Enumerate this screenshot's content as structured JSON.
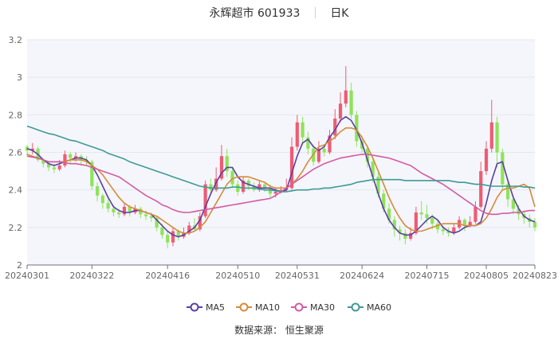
{
  "header": {
    "name": "永辉超市",
    "code": "601933",
    "period": "日K"
  },
  "footer": {
    "source": "数据来源：  恒生聚源"
  },
  "colors": {
    "up": "#f05b72",
    "down": "#8ee35a",
    "ma5": "#5b3fa3",
    "ma10": "#d9893a",
    "ma30": "#d45aa3",
    "ma60": "#3f9a96",
    "plot_bg": "#f4f6fb"
  },
  "chart_data": {
    "type": "candlestick",
    "title": "永辉超市 601933  日K",
    "ylim": [
      2.0,
      3.2
    ],
    "yticks": [
      2,
      2.2,
      2.4,
      2.6,
      2.8,
      3,
      3.2
    ],
    "xticks": [
      "20240301",
      "20240322",
      "20240416",
      "20240510",
      "20240531",
      "20240624",
      "20240715",
      "20240805",
      "20240823"
    ],
    "grid": true,
    "legend_position": "bottom",
    "series": [
      {
        "name": "MA5",
        "values": [
          2.62,
          2.61,
          2.59,
          2.56,
          2.54,
          2.53,
          2.54,
          2.55,
          2.56,
          2.57,
          2.57,
          2.56,
          2.53,
          2.48,
          2.42,
          2.36,
          2.31,
          2.29,
          2.28,
          2.28,
          2.29,
          2.29,
          2.28,
          2.27,
          2.24,
          2.21,
          2.18,
          2.16,
          2.15,
          2.16,
          2.18,
          2.2,
          2.24,
          2.31,
          2.38,
          2.44,
          2.49,
          2.52,
          2.52,
          2.47,
          2.44,
          2.43,
          2.42,
          2.41,
          2.41,
          2.41,
          2.4,
          2.39,
          2.4,
          2.49,
          2.58,
          2.65,
          2.67,
          2.63,
          2.61,
          2.63,
          2.68,
          2.72,
          2.77,
          2.79,
          2.77,
          2.72,
          2.65,
          2.56,
          2.47,
          2.38,
          2.3,
          2.24,
          2.2,
          2.17,
          2.16,
          2.16,
          2.18,
          2.21,
          2.24,
          2.26,
          2.24,
          2.2,
          2.18,
          2.17,
          2.18,
          2.2,
          2.21,
          2.21,
          2.23,
          2.33,
          2.45,
          2.54,
          2.55,
          2.45,
          2.36,
          2.3,
          2.26,
          2.24,
          2.23
        ]
      },
      {
        "name": "MA10",
        "values": [
          2.59,
          2.58,
          2.57,
          2.56,
          2.55,
          2.55,
          2.55,
          2.55,
          2.56,
          2.56,
          2.56,
          2.55,
          2.53,
          2.51,
          2.48,
          2.44,
          2.4,
          2.36,
          2.33,
          2.31,
          2.3,
          2.29,
          2.28,
          2.27,
          2.26,
          2.24,
          2.22,
          2.2,
          2.18,
          2.17,
          2.17,
          2.18,
          2.2,
          2.23,
          2.28,
          2.33,
          2.38,
          2.43,
          2.46,
          2.47,
          2.47,
          2.47,
          2.46,
          2.45,
          2.44,
          2.42,
          2.41,
          2.41,
          2.41,
          2.43,
          2.46,
          2.5,
          2.55,
          2.59,
          2.63,
          2.64,
          2.66,
          2.68,
          2.71,
          2.73,
          2.73,
          2.72,
          2.68,
          2.63,
          2.57,
          2.5,
          2.43,
          2.36,
          2.3,
          2.25,
          2.21,
          2.19,
          2.18,
          2.18,
          2.19,
          2.2,
          2.21,
          2.22,
          2.22,
          2.22,
          2.22,
          2.21,
          2.21,
          2.21,
          2.22,
          2.25,
          2.3,
          2.36,
          2.4,
          2.41,
          2.41,
          2.42,
          2.43,
          2.41,
          2.31
        ]
      },
      {
        "name": "MA30",
        "values": [
          2.58,
          2.575,
          2.57,
          2.56,
          2.55,
          2.55,
          2.55,
          2.545,
          2.54,
          2.54,
          2.535,
          2.53,
          2.52,
          2.51,
          2.5,
          2.49,
          2.48,
          2.47,
          2.45,
          2.43,
          2.41,
          2.39,
          2.37,
          2.355,
          2.34,
          2.32,
          2.31,
          2.295,
          2.285,
          2.28,
          2.28,
          2.285,
          2.29,
          2.295,
          2.3,
          2.305,
          2.31,
          2.315,
          2.32,
          2.325,
          2.33,
          2.335,
          2.34,
          2.345,
          2.35,
          2.355,
          2.37,
          2.39,
          2.41,
          2.43,
          2.45,
          2.47,
          2.49,
          2.51,
          2.525,
          2.54,
          2.55,
          2.56,
          2.57,
          2.575,
          2.58,
          2.585,
          2.59,
          2.59,
          2.585,
          2.58,
          2.575,
          2.57,
          2.56,
          2.55,
          2.54,
          2.53,
          2.51,
          2.49,
          2.475,
          2.46,
          2.445,
          2.43,
          2.41,
          2.39,
          2.37,
          2.35,
          2.33,
          2.31,
          2.29,
          2.275,
          2.27,
          2.27,
          2.275,
          2.275,
          2.28,
          2.28,
          2.285,
          2.29,
          2.29
        ]
      },
      {
        "name": "MA60",
        "values": [
          2.74,
          2.73,
          2.72,
          2.71,
          2.7,
          2.695,
          2.685,
          2.675,
          2.665,
          2.66,
          2.65,
          2.64,
          2.63,
          2.62,
          2.61,
          2.595,
          2.585,
          2.575,
          2.565,
          2.55,
          2.54,
          2.53,
          2.52,
          2.51,
          2.5,
          2.49,
          2.48,
          2.47,
          2.46,
          2.45,
          2.44,
          2.43,
          2.42,
          2.415,
          2.41,
          2.41,
          2.41,
          2.41,
          2.415,
          2.415,
          2.41,
          2.41,
          2.41,
          2.405,
          2.4,
          2.4,
          2.395,
          2.39,
          2.39,
          2.395,
          2.4,
          2.4,
          2.4,
          2.405,
          2.405,
          2.41,
          2.41,
          2.415,
          2.42,
          2.425,
          2.43,
          2.44,
          2.445,
          2.45,
          2.455,
          2.455,
          2.455,
          2.455,
          2.455,
          2.455,
          2.45,
          2.45,
          2.45,
          2.45,
          2.45,
          2.45,
          2.45,
          2.45,
          2.45,
          2.445,
          2.44,
          2.44,
          2.435,
          2.43,
          2.43,
          2.425,
          2.42,
          2.42,
          2.42,
          2.42,
          2.42,
          2.42,
          2.415,
          2.415,
          2.41
        ]
      }
    ],
    "candles": [
      [
        2.63,
        2.61,
        2.64,
        2.58
      ],
      [
        2.61,
        2.62,
        2.65,
        2.59
      ],
      [
        2.62,
        2.56,
        2.63,
        2.55
      ],
      [
        2.56,
        2.54,
        2.57,
        2.52
      ],
      [
        2.54,
        2.52,
        2.55,
        2.5
      ],
      [
        2.52,
        2.51,
        2.54,
        2.49
      ],
      [
        2.51,
        2.53,
        2.56,
        2.5
      ],
      [
        2.53,
        2.59,
        2.61,
        2.52
      ],
      [
        2.59,
        2.57,
        2.6,
        2.54
      ],
      [
        2.57,
        2.58,
        2.6,
        2.55
      ],
      [
        2.58,
        2.56,
        2.59,
        2.53
      ],
      [
        2.56,
        2.55,
        2.58,
        2.53
      ],
      [
        2.55,
        2.42,
        2.56,
        2.4
      ],
      [
        2.42,
        2.37,
        2.44,
        2.34
      ],
      [
        2.37,
        2.33,
        2.38,
        2.3
      ],
      [
        2.33,
        2.3,
        2.35,
        2.28
      ],
      [
        2.3,
        2.28,
        2.32,
        2.26
      ],
      [
        2.28,
        2.27,
        2.3,
        2.25
      ],
      [
        2.27,
        2.31,
        2.33,
        2.26
      ],
      [
        2.31,
        2.28,
        2.32,
        2.26
      ],
      [
        2.28,
        2.3,
        2.32,
        2.27
      ],
      [
        2.3,
        2.27,
        2.31,
        2.25
      ],
      [
        2.27,
        2.26,
        2.29,
        2.24
      ],
      [
        2.26,
        2.25,
        2.28,
        2.23
      ],
      [
        2.25,
        2.2,
        2.26,
        2.18
      ],
      [
        2.2,
        2.16,
        2.22,
        2.14
      ],
      [
        2.16,
        2.12,
        2.18,
        2.09
      ],
      [
        2.12,
        2.18,
        2.2,
        2.1
      ],
      [
        2.18,
        2.15,
        2.19,
        2.13
      ],
      [
        2.15,
        2.17,
        2.2,
        2.14
      ],
      [
        2.17,
        2.21,
        2.23,
        2.16
      ],
      [
        2.21,
        2.19,
        2.25,
        2.18
      ],
      [
        2.19,
        2.26,
        2.28,
        2.18
      ],
      [
        2.26,
        2.43,
        2.45,
        2.25
      ],
      [
        2.43,
        2.4,
        2.46,
        2.38
      ],
      [
        2.4,
        2.46,
        2.52,
        2.39
      ],
      [
        2.46,
        2.58,
        2.64,
        2.45
      ],
      [
        2.58,
        2.5,
        2.62,
        2.47
      ],
      [
        2.5,
        2.43,
        2.52,
        2.41
      ],
      [
        2.43,
        2.39,
        2.45,
        2.37
      ],
      [
        2.39,
        2.45,
        2.47,
        2.38
      ],
      [
        2.45,
        2.42,
        2.46,
        2.4
      ],
      [
        2.42,
        2.4,
        2.44,
        2.39
      ],
      [
        2.4,
        2.43,
        2.45,
        2.39
      ],
      [
        2.43,
        2.41,
        2.44,
        2.39
      ],
      [
        2.41,
        2.38,
        2.43,
        2.36
      ],
      [
        2.38,
        2.39,
        2.41,
        2.36
      ],
      [
        2.39,
        2.4,
        2.42,
        2.38
      ],
      [
        2.4,
        2.41,
        2.46,
        2.39
      ],
      [
        2.41,
        2.63,
        2.68,
        2.4
      ],
      [
        2.63,
        2.76,
        2.8,
        2.61
      ],
      [
        2.76,
        2.68,
        2.79,
        2.64
      ],
      [
        2.68,
        2.62,
        2.71,
        2.59
      ],
      [
        2.62,
        2.55,
        2.64,
        2.53
      ],
      [
        2.55,
        2.62,
        2.66,
        2.54
      ],
      [
        2.62,
        2.6,
        2.64,
        2.58
      ],
      [
        2.6,
        2.69,
        2.72,
        2.59
      ],
      [
        2.69,
        2.78,
        2.83,
        2.67
      ],
      [
        2.78,
        2.86,
        2.92,
        2.76
      ],
      [
        2.86,
        2.93,
        3.06,
        2.84
      ],
      [
        2.93,
        2.8,
        2.97,
        2.78
      ],
      [
        2.8,
        2.66,
        2.82,
        2.63
      ],
      [
        2.66,
        2.62,
        2.69,
        2.6
      ],
      [
        2.62,
        2.55,
        2.64,
        2.52
      ],
      [
        2.55,
        2.47,
        2.57,
        2.44
      ],
      [
        2.47,
        2.38,
        2.49,
        2.36
      ],
      [
        2.38,
        2.3,
        2.4,
        2.28
      ],
      [
        2.3,
        2.24,
        2.33,
        2.22
      ],
      [
        2.24,
        2.19,
        2.26,
        2.15
      ],
      [
        2.19,
        2.17,
        2.21,
        2.13
      ],
      [
        2.17,
        2.14,
        2.19,
        2.11
      ],
      [
        2.14,
        2.17,
        2.2,
        2.13
      ],
      [
        2.17,
        2.28,
        2.31,
        2.16
      ],
      [
        2.28,
        2.27,
        2.34,
        2.24
      ],
      [
        2.27,
        2.25,
        2.32,
        2.22
      ],
      [
        2.25,
        2.22,
        2.27,
        2.19
      ],
      [
        2.22,
        2.19,
        2.24,
        2.17
      ],
      [
        2.19,
        2.18,
        2.21,
        2.16
      ],
      [
        2.18,
        2.17,
        2.2,
        2.15
      ],
      [
        2.17,
        2.2,
        2.22,
        2.16
      ],
      [
        2.2,
        2.24,
        2.26,
        2.19
      ],
      [
        2.24,
        2.21,
        2.25,
        2.18
      ],
      [
        2.21,
        2.23,
        2.26,
        2.2
      ],
      [
        2.23,
        2.31,
        2.34,
        2.22
      ],
      [
        2.31,
        2.5,
        2.55,
        2.3
      ],
      [
        2.5,
        2.62,
        2.66,
        2.48
      ],
      [
        2.62,
        2.76,
        2.88,
        2.6
      ],
      [
        2.76,
        2.6,
        2.79,
        2.52
      ],
      [
        2.6,
        2.43,
        2.62,
        2.4
      ],
      [
        2.43,
        2.35,
        2.46,
        2.31
      ],
      [
        2.35,
        2.3,
        2.37,
        2.27
      ],
      [
        2.3,
        2.27,
        2.32,
        2.24
      ],
      [
        2.27,
        2.25,
        2.29,
        2.22
      ],
      [
        2.25,
        2.23,
        2.27,
        2.2
      ],
      [
        2.23,
        2.2,
        2.25,
        2.18
      ]
    ]
  }
}
